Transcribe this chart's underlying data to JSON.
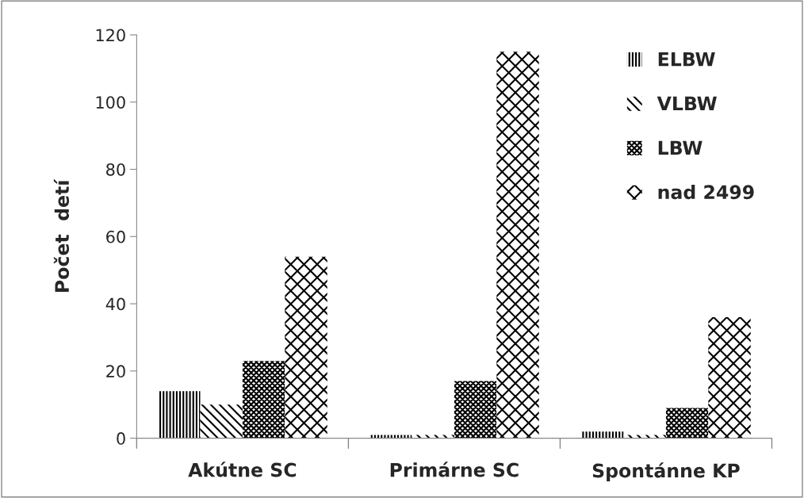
{
  "chart_data": {
    "type": "bar",
    "ylabel": "Počet  detí",
    "categories": [
      "Akútne SC",
      "Primárne SC",
      "Spontánne KP"
    ],
    "series": [
      {
        "name": "ELBW",
        "color": "#000000",
        "values": [
          14,
          1,
          2
        ]
      },
      {
        "name": "VLBW",
        "color": "#000000",
        "values": [
          10,
          1,
          1
        ]
      },
      {
        "name": "LBW",
        "color": "#000000",
        "values": [
          23,
          17,
          9
        ]
      },
      {
        "name": "nad 2499",
        "color": "#000000",
        "values": [
          54,
          115,
          36
        ]
      }
    ],
    "ylim": [
      0,
      120
    ],
    "yticks": [
      0,
      20,
      40,
      60,
      80,
      100,
      120
    ],
    "legend": "top right",
    "grid": false
  }
}
